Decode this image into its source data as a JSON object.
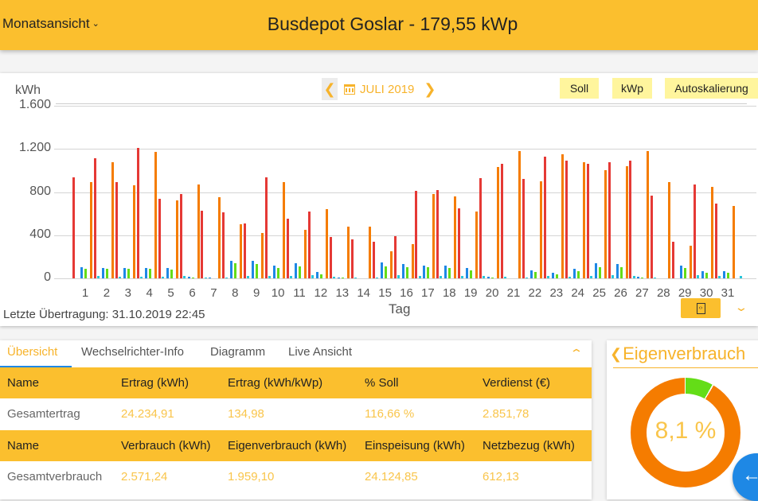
{
  "header": {
    "view_select": "Monatsansicht",
    "title": "Busdepot Goslar - 179,55 kWp"
  },
  "chart_toolbar": {
    "month": "JULI 2019",
    "buttons": [
      "Soll",
      "kWp",
      "Autoskalierung"
    ]
  },
  "chart_footer": {
    "last_transfer": "Letzte Übertragung: 31.10.2019 22:45"
  },
  "colors": {
    "brand": "#fbbf2e",
    "accent_text": "#f7b32b",
    "button_light": "#fff59d",
    "series_red": "#e53935",
    "series_blue": "#1e88e5",
    "series_green": "#64dd17",
    "series_orange": "#f57c00",
    "series_cyan": "#26c6da",
    "fab": "#1e88e5"
  },
  "chart_data": {
    "type": "bar",
    "title": "JULI 2019",
    "xlabel": "Tag",
    "ylabel": "kWh",
    "ylim": [
      0,
      1600
    ],
    "yticks": [
      "0",
      "400",
      "800",
      "1.200",
      "1.600"
    ],
    "grid": true,
    "categories": [
      "1",
      "2",
      "3",
      "4",
      "5",
      "6",
      "7",
      "8",
      "9",
      "10",
      "11",
      "12",
      "13",
      "14",
      "15",
      "16",
      "17",
      "18",
      "19",
      "20",
      "21",
      "22",
      "23",
      "24",
      "25",
      "26",
      "27",
      "28",
      "29",
      "30",
      "31"
    ],
    "series": [
      {
        "name": "red",
        "color": "#e53935",
        "values": [
          940,
          1110,
          890,
          1210,
          740,
          780,
          630,
          610,
          510,
          940,
          550,
          620,
          380,
          360,
          340,
          390,
          810,
          820,
          650,
          930,
          1060,
          920,
          1130,
          1090,
          1060,
          1080,
          1090,
          770,
          340,
          870,
          690
        ]
      },
      {
        "name": "blue",
        "color": "#1e88e5",
        "values": [
          105,
          95,
          95,
          95,
          95,
          15,
          10,
          160,
          160,
          120,
          140,
          60,
          10,
          0,
          150,
          130,
          120,
          115,
          95,
          15,
          0,
          75,
          55,
          90,
          140,
          130,
          15,
          0,
          120,
          70,
          70
        ]
      },
      {
        "name": "green",
        "color": "#64dd17",
        "values": [
          90,
          85,
          85,
          85,
          80,
          5,
          0,
          140,
          130,
          95,
          110,
          40,
          5,
          0,
          110,
          100,
          100,
          95,
          75,
          5,
          0,
          60,
          40,
          70,
          105,
          100,
          5,
          0,
          95,
          55,
          55
        ]
      },
      {
        "name": "orange",
        "color": "#f57c00",
        "values": [
          890,
          1075,
          860,
          1170,
          720,
          870,
          750,
          500,
          420,
          890,
          450,
          640,
          480,
          480,
          250,
          320,
          780,
          760,
          620,
          1030,
          1180,
          900,
          1150,
          1080,
          1000,
          1040,
          1180,
          890,
          300,
          850,
          670
        ]
      },
      {
        "name": "cyan",
        "color": "#26c6da",
        "values": [
          20,
          15,
          15,
          15,
          25,
          10,
          10,
          20,
          20,
          25,
          30,
          15,
          10,
          5,
          30,
          25,
          25,
          20,
          20,
          15,
          5,
          20,
          15,
          20,
          30,
          25,
          10,
          0,
          30,
          20,
          20
        ]
      }
    ]
  },
  "tabs": [
    {
      "label": "Übersicht",
      "active": true
    },
    {
      "label": "Wechselrichter-Info",
      "active": false
    },
    {
      "label": "Diagramm",
      "active": false
    },
    {
      "label": "Live Ansicht",
      "active": false
    }
  ],
  "table": {
    "yield_header": [
      "Name",
      "Ertrag (kWh)",
      "Ertrag (kWh/kWp)",
      "% Soll",
      "Verdienst (€)"
    ],
    "yield_row": [
      "Gesamtertrag",
      "24.234,91",
      "134,98",
      "116,66 %",
      "2.851,78"
    ],
    "consumption_header": [
      "Name",
      "Verbrauch (kWh)",
      "Eigenverbrauch (kWh)",
      "Einspeisung (kWh)",
      "Netzbezug (kWh)"
    ],
    "consumption_row": [
      "Gesamtverbrauch",
      "2.571,24",
      "1.959,10",
      "24.124,85",
      "612,13"
    ]
  },
  "pie": {
    "title": "Eigenverbrauch",
    "value_label": "8,1 %",
    "percent": 8.1
  }
}
